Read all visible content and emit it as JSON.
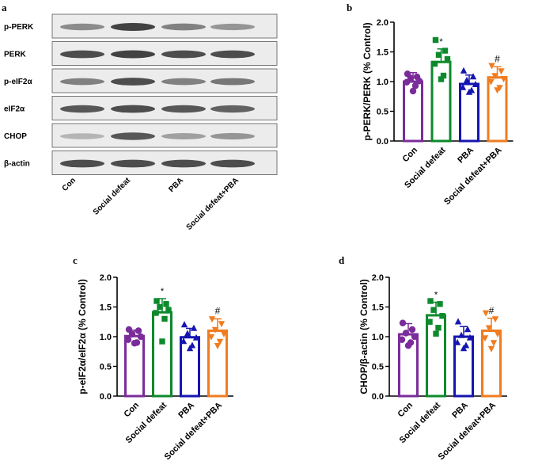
{
  "panels": {
    "a": {
      "letter": "a",
      "blot_labels": [
        "p-PERK",
        "PERK",
        "p-eIF2α",
        "eIF2α",
        "CHOP",
        "β-actin"
      ],
      "lane_labels": [
        "Con",
        "Social defeat",
        "PBA",
        "Social defeat+PBA"
      ]
    }
  },
  "chart_data": [
    {
      "panel": "b",
      "letter": "b",
      "type": "bar",
      "ylabel": "p-PERK/PERK (% Control)",
      "xlabel": "",
      "ylim": [
        0.0,
        2.0
      ],
      "yticks": [
        "0.0",
        "0.5",
        "1.0",
        "1.5",
        "2.0"
      ],
      "categories": [
        "Con",
        "Social defeat",
        "PBA",
        "Social defeat+PBA"
      ],
      "values": [
        1.0,
        1.33,
        0.96,
        1.07
      ],
      "errors": [
        0.15,
        0.22,
        0.15,
        0.18
      ],
      "points": [
        [
          1.13,
          1.08,
          1.06,
          1.01,
          0.99,
          0.93,
          0.84
        ],
        [
          1.7,
          1.52,
          1.45,
          1.38,
          1.3,
          1.1,
          1.04
        ],
        [
          1.18,
          1.08,
          1.02,
          0.95,
          0.9,
          0.85,
          0.82
        ],
        [
          1.27,
          1.18,
          1.1,
          1.05,
          1.0,
          0.9,
          0.86
        ]
      ],
      "annotations": [
        "",
        "*",
        "",
        "#"
      ]
    },
    {
      "panel": "c",
      "letter": "c",
      "type": "bar",
      "ylabel": "p-eIF2α/eIF2α (% Control)",
      "xlabel": "",
      "ylim": [
        0.0,
        2.0
      ],
      "yticks": [
        "0.0",
        "0.5",
        "1.0",
        "1.5",
        "2.0"
      ],
      "categories": [
        "Con",
        "Social defeat",
        "PBA",
        "Social defeat+PBA"
      ],
      "values": [
        1.01,
        1.41,
        0.99,
        1.1
      ],
      "errors": [
        0.1,
        0.23,
        0.15,
        0.2
      ],
      "points": [
        [
          1.12,
          1.1,
          1.04,
          1.0,
          0.95,
          0.9,
          0.89
        ],
        [
          1.6,
          1.55,
          1.5,
          1.45,
          1.4,
          1.3,
          0.92
        ],
        [
          1.2,
          1.14,
          1.05,
          0.98,
          0.92,
          0.85,
          0.8
        ],
        [
          1.3,
          1.22,
          1.12,
          1.05,
          1.0,
          0.92,
          0.85
        ]
      ],
      "annotations": [
        "",
        "*",
        "",
        "#"
      ]
    },
    {
      "panel": "d",
      "letter": "d",
      "type": "bar",
      "ylabel": "CHOP/β-actin (% Control)",
      "xlabel": "",
      "ylim": [
        0.0,
        2.0
      ],
      "yticks": [
        "0.0",
        "0.5",
        "1.0",
        "1.5",
        "2.0"
      ],
      "categories": [
        "Con",
        "Social defeat",
        "PBA",
        "Social defeat+PBA"
      ],
      "values": [
        1.04,
        1.36,
        1.0,
        1.1
      ],
      "errors": [
        0.18,
        0.22,
        0.17,
        0.21
      ],
      "points": [
        [
          1.23,
          1.12,
          1.06,
          1.0,
          0.95,
          0.9,
          0.85
        ],
        [
          1.6,
          1.55,
          1.45,
          1.35,
          1.25,
          1.15,
          1.05
        ],
        [
          1.25,
          1.12,
          1.02,
          0.98,
          0.9,
          0.85,
          0.8
        ],
        [
          1.4,
          1.3,
          1.15,
          1.05,
          0.98,
          0.9,
          0.8
        ]
      ],
      "annotations": [
        "",
        "*",
        "",
        "#"
      ]
    }
  ],
  "colors": {
    "groups": [
      "#7b2c9b",
      "#0d8a2c",
      "#1515b0",
      "#f07c1f"
    ],
    "axis": "#000000"
  },
  "markers": [
    "circle",
    "square",
    "triangle",
    "inverted-triangle"
  ]
}
